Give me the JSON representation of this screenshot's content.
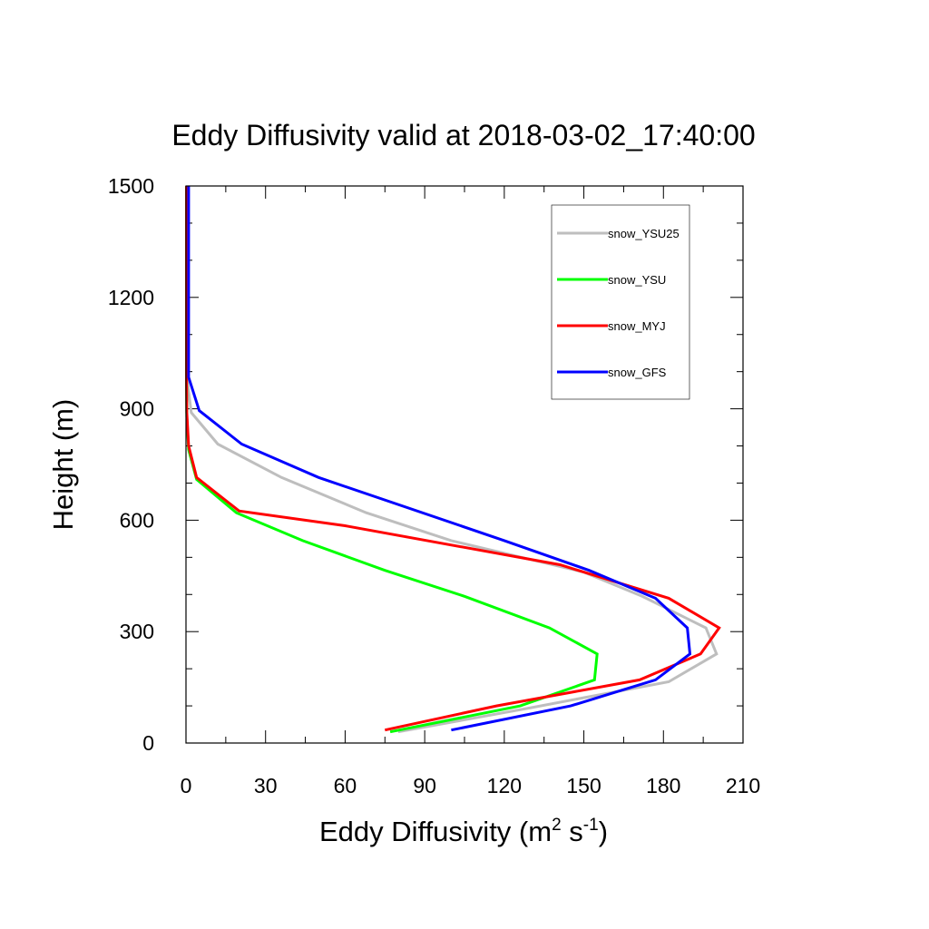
{
  "chart_data": {
    "type": "line",
    "title": "Eddy Diffusivity valid at 2018-03-02_17:40:00",
    "xlabel": "Eddy Diffusivity (m² s⁻¹)",
    "ylabel": "Height (m)",
    "xlim": [
      0,
      210
    ],
    "ylim": [
      0,
      1500
    ],
    "xticks": [
      0,
      30,
      60,
      90,
      120,
      150,
      180,
      210
    ],
    "yticks": [
      0,
      300,
      600,
      900,
      1200,
      1500
    ],
    "legend_position": "top-right",
    "grid": false,
    "series": [
      {
        "name": "snow_YSU25",
        "color": "#bebebe",
        "points": [
          [
            80,
            30
          ],
          [
            130,
            95
          ],
          [
            182,
            165
          ],
          [
            200,
            240
          ],
          [
            196,
            310
          ],
          [
            172,
            395
          ],
          [
            150,
            460
          ],
          [
            100,
            545
          ],
          [
            68,
            620
          ],
          [
            36,
            715
          ],
          [
            12,
            805
          ],
          [
            2,
            890
          ],
          [
            0.5,
            975
          ],
          [
            0.5,
            1500
          ]
        ]
      },
      {
        "name": "snow_YSU",
        "color": "#00ff00",
        "points": [
          [
            77,
            30
          ],
          [
            126,
            100
          ],
          [
            154,
            170
          ],
          [
            155,
            240
          ],
          [
            137,
            310
          ],
          [
            105,
            395
          ],
          [
            75,
            465
          ],
          [
            44,
            545
          ],
          [
            19,
            620
          ],
          [
            4,
            710
          ],
          [
            1,
            790
          ],
          [
            0.3,
            880
          ],
          [
            0.2,
            975
          ],
          [
            0.2,
            1500
          ]
        ]
      },
      {
        "name": "snow_MYJ",
        "color": "#ff0000",
        "points": [
          [
            75,
            35
          ],
          [
            117,
            100
          ],
          [
            171,
            170
          ],
          [
            194,
            240
          ],
          [
            201,
            310
          ],
          [
            182,
            390
          ],
          [
            141,
            480
          ],
          [
            60,
            585
          ],
          [
            20,
            625
          ],
          [
            4,
            715
          ],
          [
            1,
            800
          ],
          [
            0.3,
            890
          ],
          [
            0.2,
            975
          ],
          [
            0.2,
            1500
          ]
        ]
      },
      {
        "name": "snow_GFS",
        "color": "#0000ff",
        "points": [
          [
            100,
            35
          ],
          [
            145,
            100
          ],
          [
            177,
            170
          ],
          [
            190,
            240
          ],
          [
            189,
            310
          ],
          [
            177,
            390
          ],
          [
            152,
            465
          ],
          [
            120,
            545
          ],
          [
            50,
            715
          ],
          [
            21,
            805
          ],
          [
            5,
            895
          ],
          [
            1,
            985
          ],
          [
            1,
            1500
          ]
        ]
      }
    ]
  }
}
